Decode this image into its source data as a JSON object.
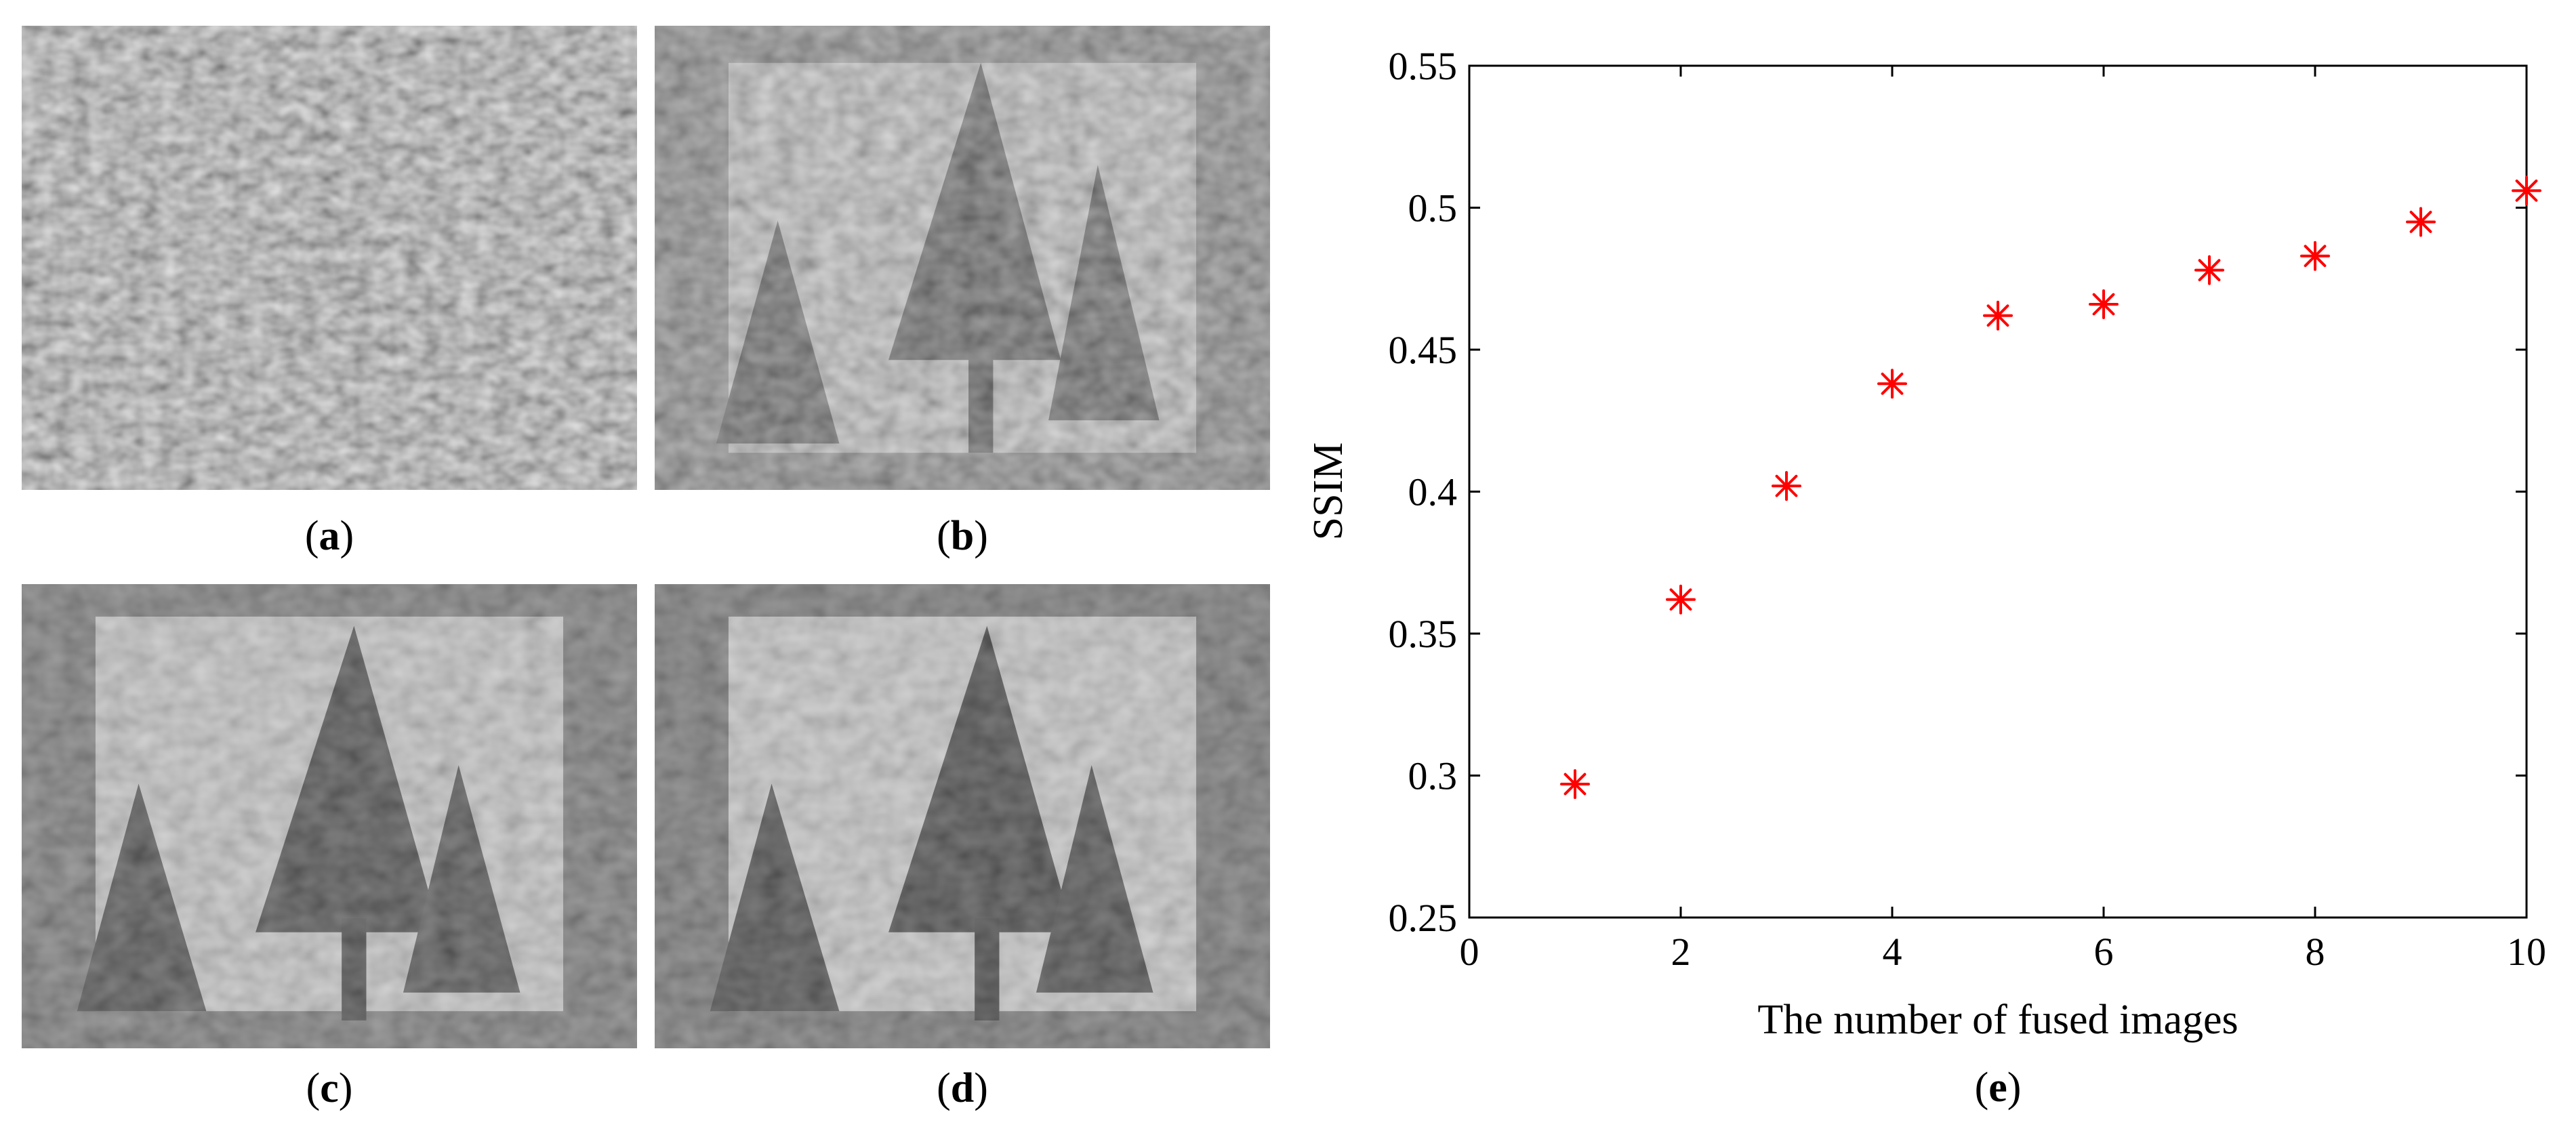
{
  "panels": [
    {
      "id": "a",
      "label": "a"
    },
    {
      "id": "b",
      "label": "b"
    },
    {
      "id": "c",
      "label": "c"
    },
    {
      "id": "d",
      "label": "d"
    }
  ],
  "chart_data": {
    "type": "scatter",
    "panel_label": "e",
    "xlabel": "The number of fused images",
    "ylabel": "SSIM",
    "xlim": [
      0,
      10
    ],
    "ylim": [
      0.25,
      0.55
    ],
    "xticks": [
      0,
      2,
      4,
      6,
      8,
      10
    ],
    "yticks": [
      0.25,
      0.3,
      0.35,
      0.4,
      0.45,
      0.5,
      0.55
    ],
    "ytick_labels": [
      "0.25",
      "0.3",
      "0.35",
      "0.4",
      "0.45",
      "0.5",
      "0.55"
    ],
    "grid": false,
    "marker": "asterisk",
    "marker_color": "#ff0000",
    "x": [
      1,
      2,
      3,
      4,
      5,
      6,
      7,
      8,
      9,
      10
    ],
    "y": [
      0.297,
      0.362,
      0.402,
      0.438,
      0.462,
      0.466,
      0.478,
      0.483,
      0.495,
      0.506
    ]
  }
}
